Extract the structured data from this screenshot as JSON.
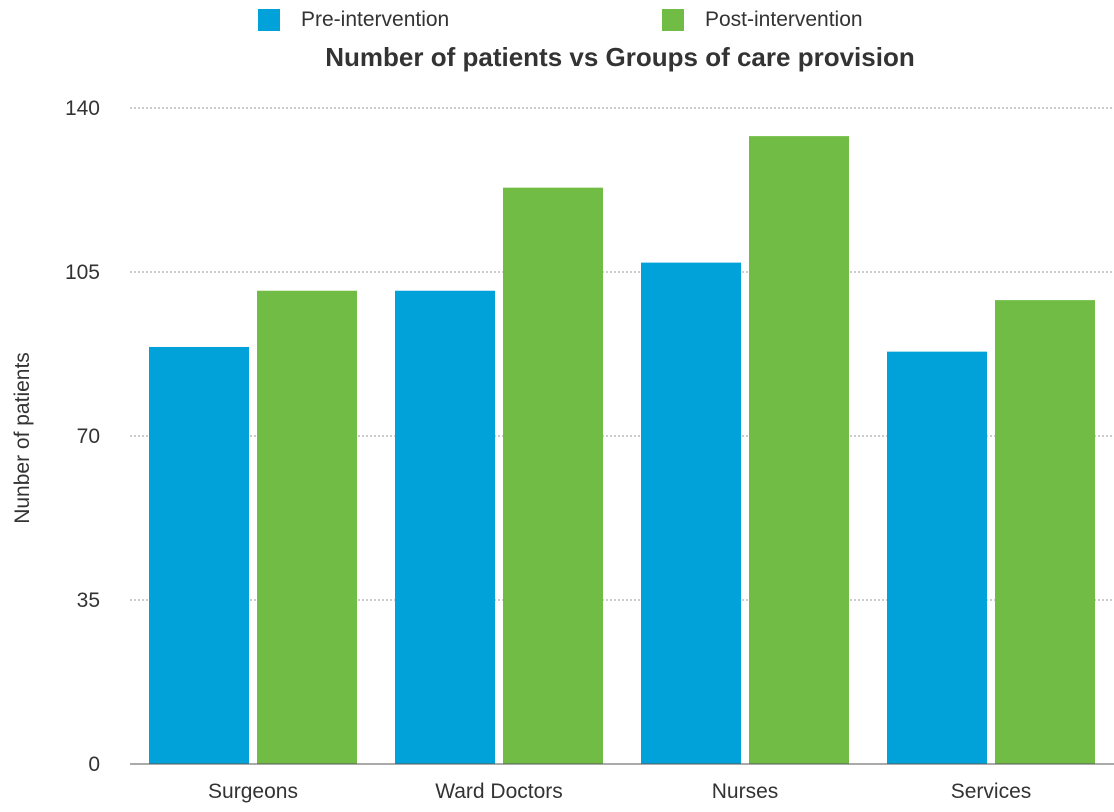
{
  "chart_data": {
    "type": "bar",
    "title": "Number of patients vs Groups of care provision",
    "xlabel": "",
    "ylabel": "Nunber of patients",
    "categories": [
      "Surgeons",
      "Ward Doctors",
      "Nurses",
      "Services"
    ],
    "series": [
      {
        "name": "Pre-intervention",
        "color": "#00A2D9",
        "values": [
          89,
          101,
          107,
          88
        ]
      },
      {
        "name": "Post-intervention",
        "color": "#70BC45",
        "values": [
          101,
          123,
          134,
          99
        ]
      }
    ],
    "ylim": [
      0,
      140
    ],
    "yticks": [
      "0",
      "35",
      "70",
      "105",
      "140"
    ],
    "grid": true,
    "legend_position": "top"
  }
}
